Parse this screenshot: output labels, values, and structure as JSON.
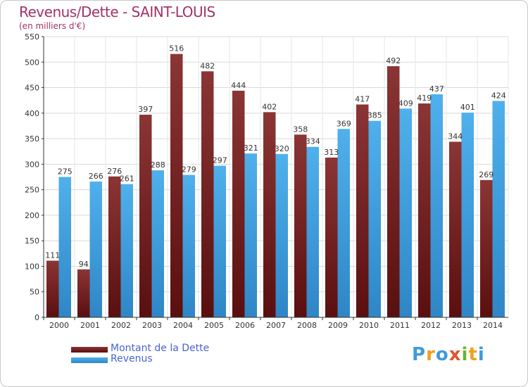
{
  "title": "Revenus/Dette - SAINT-LOUIS",
  "subtitle": "(en milliers d'€)",
  "colors": {
    "title": "#a0336a",
    "dette": "#7a1f1f",
    "revenus": "#3f9bdc",
    "legend_text": "#4b62d0"
  },
  "legend": [
    {
      "label": "Montant de la Dette",
      "color": "#7a1f1f"
    },
    {
      "label": "Revenus",
      "color": "#3f9bdc"
    }
  ],
  "logo": {
    "text": "Proxiti",
    "icon": "proxiti-logo"
  },
  "chart_data": {
    "type": "bar",
    "title": "Revenus/Dette - SAINT-LOUIS",
    "subtitle": "(en milliers d'€)",
    "xlabel": "",
    "ylabel": "",
    "ylim": [
      0,
      550
    ],
    "yticks": [
      0,
      50,
      100,
      150,
      200,
      250,
      300,
      350,
      400,
      450,
      500,
      550
    ],
    "grid": true,
    "legend_position": "bottom-left",
    "categories": [
      "2000",
      "2001",
      "2002",
      "2003",
      "2004",
      "2005",
      "2006",
      "2007",
      "2008",
      "2009",
      "2010",
      "2011",
      "2012",
      "2013",
      "2014"
    ],
    "series": [
      {
        "name": "Montant de la Dette",
        "color": "#7a1f1f",
        "values": [
          111,
          94,
          276,
          397,
          516,
          482,
          444,
          402,
          358,
          313,
          417,
          492,
          419,
          344,
          269
        ]
      },
      {
        "name": "Revenus",
        "color": "#3f9bdc",
        "values": [
          275,
          266,
          261,
          288,
          279,
          297,
          321,
          320,
          334,
          369,
          385,
          409,
          437,
          401,
          424
        ]
      }
    ]
  }
}
